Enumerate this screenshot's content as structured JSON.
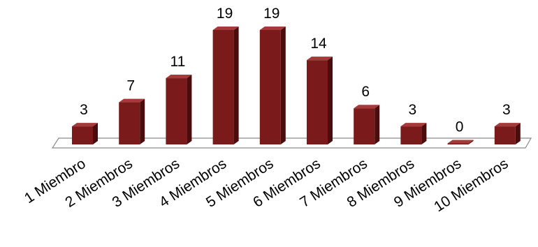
{
  "chart_data": {
    "type": "bar",
    "categories": [
      "1  Miembro",
      "2 Miembros",
      "3 Miembros",
      "4 Miembros",
      "5 Miembros",
      "6 Miembros",
      "7 Miembros",
      "8 Miembros",
      "9 Miembros",
      "10 Miembros"
    ],
    "values": [
      3,
      7,
      11,
      19,
      19,
      14,
      6,
      3,
      0,
      3
    ],
    "data_labels": [
      "3",
      "7",
      "11",
      "19",
      "19",
      "14",
      "6",
      "3",
      "0",
      "3"
    ],
    "title": "",
    "xlabel": "",
    "ylabel": "",
    "ylim": [
      0,
      19
    ],
    "grid": false,
    "legend": "none",
    "style": "3d-columns",
    "colors": {
      "bar_front": "#7b1a1a",
      "bar_side": "#4a0c0c",
      "bar_top": "#a63a3a",
      "floor": "#ffffff",
      "floor_edge": "#8a8a8a"
    }
  }
}
